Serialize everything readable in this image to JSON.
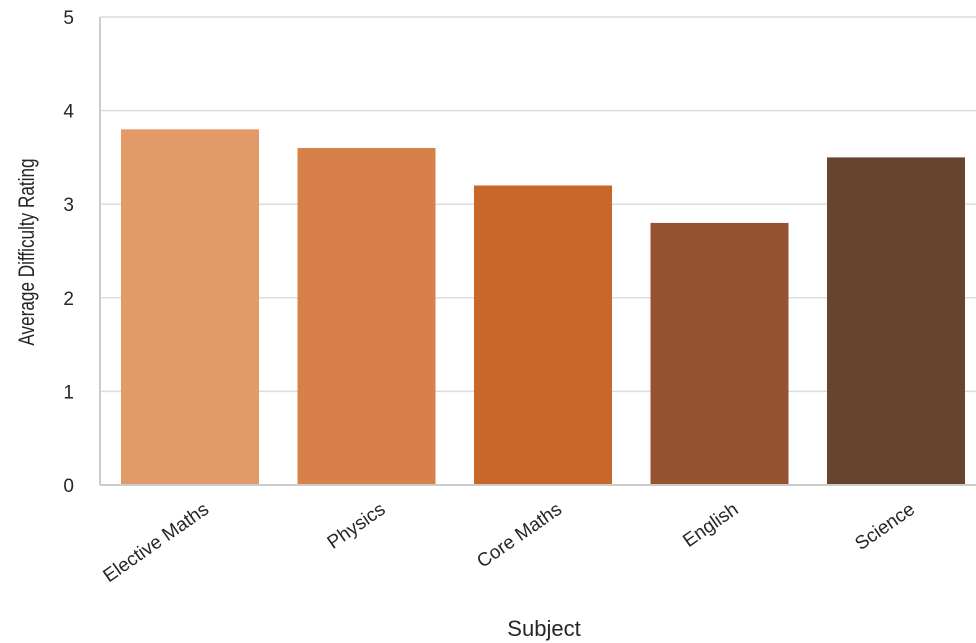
{
  "chart_data": {
    "type": "bar",
    "title": "",
    "xlabel": "Subject",
    "ylabel": "Average Difficulty Rating",
    "categories": [
      "Elective Maths",
      "Physics",
      "Core Maths",
      "English",
      "Science"
    ],
    "values": [
      3.8,
      3.6,
      3.2,
      2.8,
      3.5
    ],
    "colors": [
      "#e29a68",
      "#d78049",
      "#c9662a",
      "#95542f",
      "#67442e"
    ],
    "ylim": [
      0,
      5
    ],
    "yticks": [
      "0",
      "1",
      "2",
      "3",
      "4",
      "5"
    ],
    "grid": true,
    "legend": "none"
  }
}
